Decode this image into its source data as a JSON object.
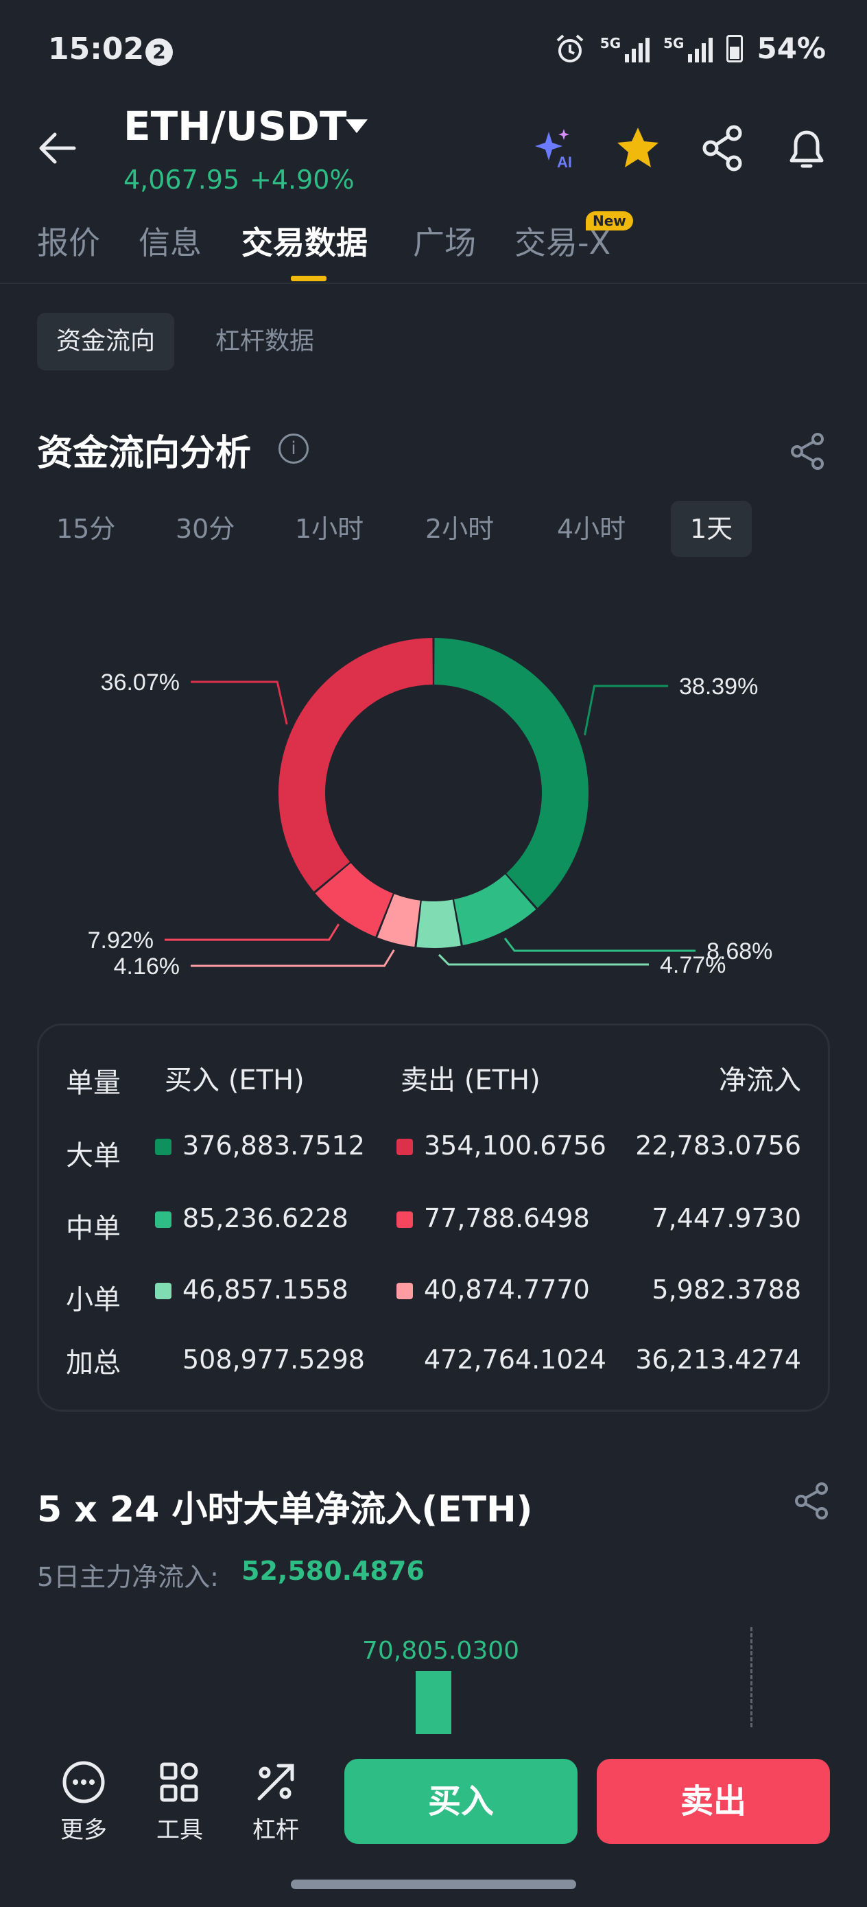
{
  "status_bar": {
    "time": "15:02",
    "notification_count": "2",
    "sig1_label": "5G",
    "sig2_label": "5G",
    "battery": "54%"
  },
  "header": {
    "pair": "ETH/USDT",
    "price": "4,067.95",
    "change": "+4.90%",
    "ai_label": "AI"
  },
  "tabs": [
    {
      "label": "报价"
    },
    {
      "label": "信息"
    },
    {
      "label": "交易数据"
    },
    {
      "label": "广场"
    },
    {
      "label": "交易-X"
    }
  ],
  "new_badge": "New",
  "sub_tabs": [
    {
      "label": "资金流向"
    },
    {
      "label": "杠杆数据"
    }
  ],
  "fund_flow": {
    "title": "资金流向分析",
    "info_icon": "i",
    "periods": [
      "15分",
      "30分",
      "1小时",
      "2小时",
      "4小时",
      "1天"
    ],
    "active_period": "1天"
  },
  "chart_data": {
    "type": "pie",
    "slices": [
      {
        "label": "38.39%",
        "value": 38.39,
        "color": "#0e915d"
      },
      {
        "label": "8.68%",
        "value": 8.68,
        "color": "#2ebd85"
      },
      {
        "label": "4.77%",
        "value": 4.77,
        "color": "#7fdcb3"
      },
      {
        "label": "4.16%",
        "value": 4.16,
        "color": "#ff9ca2"
      },
      {
        "label": "7.92%",
        "value": 7.92,
        "color": "#f6465d"
      },
      {
        "label": "36.07%",
        "value": 36.07,
        "color": "#dc304b"
      }
    ]
  },
  "table": {
    "headers": {
      "size": "单量",
      "buy": "买入 (ETH)",
      "sell": "卖出 (ETH)",
      "net": "净流入"
    },
    "rows": [
      {
        "label": "大单",
        "buy": "376,883.7512",
        "sell": "354,100.6756",
        "net": "22,783.0756",
        "buy_color": "#0e915d",
        "sell_color": "#dc304b"
      },
      {
        "label": "中单",
        "buy": "85,236.6228",
        "sell": "77,788.6498",
        "net": "7,447.9730",
        "buy_color": "#2ebd85",
        "sell_color": "#f6465d"
      },
      {
        "label": "小单",
        "buy": "46,857.1558",
        "sell": "40,874.7770",
        "net": "5,982.3788",
        "buy_color": "#7fdcb3",
        "sell_color": "#ff9ca2"
      },
      {
        "label": "加总",
        "buy": "508,977.5298",
        "sell": "472,764.1024",
        "net": "36,213.4274"
      }
    ]
  },
  "large_order": {
    "title": "5 x 24 小时大单净流入(ETH)",
    "main_net_label": "5日主力净流入: ",
    "main_net_value": "52,580.4876",
    "bar_value_label": "70,805.0300"
  },
  "bottom_bar": {
    "more": "更多",
    "tools": "工具",
    "leverage": "杠杆",
    "buy": "买入",
    "sell": "卖出"
  },
  "colors": {
    "green": "#2ebd85",
    "red": "#f6465d",
    "accent": "#f0b90b",
    "bg": "#1f232b"
  }
}
